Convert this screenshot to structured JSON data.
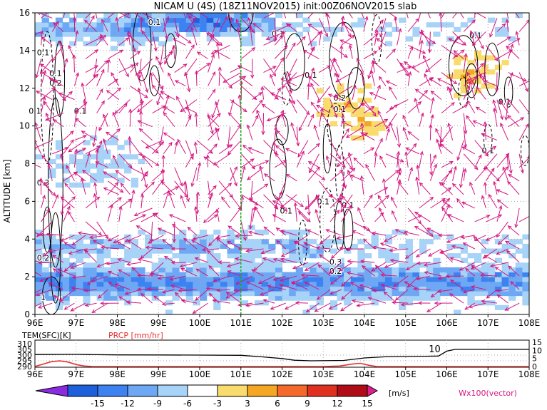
{
  "chart_data": [
    {
      "type": "heatmap",
      "title": "NICAM U (4S) (18Z11NOV2015) init:00Z06NOV2015 slab",
      "ylabel": "ALTITUDE [km]",
      "x_ticks": [
        "96E",
        "97E",
        "98E",
        "99E",
        "100E",
        "101E",
        "102E",
        "103E",
        "104E",
        "105E",
        "106E",
        "107E",
        "108E"
      ],
      "x_values": [
        96,
        97,
        98,
        99,
        100,
        101,
        102,
        103,
        104,
        105,
        106,
        107,
        108
      ],
      "y_ticks": [
        "0",
        "2",
        "4",
        "6",
        "8",
        "10",
        "12",
        "14",
        "16"
      ],
      "y_values": [
        0,
        2,
        4,
        6,
        8,
        10,
        12,
        14,
        16
      ],
      "xlim": [
        96,
        108
      ],
      "ylim": [
        0,
        16
      ],
      "marker_longitude": 101,
      "contour_labels": [
        {
          "text": "0.1",
          "lon": 98.9,
          "alt": 15.5
        },
        {
          "text": "0.1",
          "lon": 101.9,
          "alt": 14.9
        },
        {
          "text": "0.1",
          "lon": 106.7,
          "alt": 14.8
        },
        {
          "text": "0.1",
          "lon": 96.2,
          "alt": 13.9
        },
        {
          "text": "0.1",
          "lon": 102.7,
          "alt": 12.7
        },
        {
          "text": "0.1",
          "lon": 96.5,
          "alt": 12.8
        },
        {
          "text": "0.2",
          "lon": 96.5,
          "alt": 12.3
        },
        {
          "text": "0.2",
          "lon": 103.4,
          "alt": 11.5
        },
        {
          "text": "0.1",
          "lon": 103.4,
          "alt": 10.9
        },
        {
          "text": "0.1",
          "lon": 96.0,
          "alt": 10.8
        },
        {
          "text": "0.1",
          "lon": 97.1,
          "alt": 10.8
        },
        {
          "text": "0.1",
          "lon": 107.4,
          "alt": 11.3
        },
        {
          "text": "0.1",
          "lon": 107.0,
          "alt": 8.7
        },
        {
          "text": "0.3",
          "lon": 96.2,
          "alt": 7.0
        },
        {
          "text": "0.1",
          "lon": 102.1,
          "alt": 5.5
        },
        {
          "text": "0.1",
          "lon": 103.0,
          "alt": 6.0
        },
        {
          "text": "0.1",
          "lon": 103.6,
          "alt": 5.8
        },
        {
          "text": "0.2",
          "lon": 96.2,
          "alt": 3.0
        },
        {
          "text": "0.3",
          "lon": 103.3,
          "alt": 2.8
        },
        {
          "text": "0.2",
          "lon": 103.3,
          "alt": 2.3
        },
        {
          "text": "1",
          "lon": 96.2,
          "alt": 0.9
        }
      ],
      "colorbar": {
        "unit": "[m/s]",
        "labels": [
          "-15",
          "-12",
          "-9",
          "-6",
          "-3",
          "3",
          "6",
          "9",
          "12",
          "15"
        ],
        "colors": [
          "#8a2be2",
          "#1e5fdc",
          "#3c82f0",
          "#6ea8f5",
          "#a6d3f7",
          "#ffffff",
          "#f9dc6e",
          "#f5a623",
          "#f56a2a",
          "#e03020",
          "#b00c18",
          "#e0208a"
        ]
      },
      "vector_label": "Wx100(vector)",
      "colors": {
        "vector": "#d5157f",
        "marker_line": "#1ea81e",
        "grid": "#a9a9a9",
        "contour": "#000000"
      }
    },
    {
      "type": "line",
      "series": [
        {
          "name": "TEM(SFC)[K]",
          "color": "#000000"
        },
        {
          "name": "PRCP [mm/hr]",
          "color": "#e53030"
        }
      ],
      "legend_tem_label": "TEM(SFC)[K]",
      "legend_prcp_label": "PRCP [mm/hr]",
      "x_ticks": [
        "96E",
        "97E",
        "98E",
        "99E",
        "100E",
        "101E",
        "102E",
        "103E",
        "104E",
        "105E",
        "106E",
        "107E",
        "108E"
      ],
      "left_ticks": [
        "310",
        "305",
        "300",
        "295",
        "290"
      ],
      "left_values": [
        310,
        305,
        300,
        295,
        290
      ],
      "right_ticks": [
        "15",
        "10",
        "5",
        "0"
      ],
      "right_values": [
        15,
        10,
        5,
        0
      ],
      "annotation": "10",
      "tem": {
        "lon": [
          96,
          97,
          97.5,
          98,
          99,
          100,
          101,
          101.5,
          102,
          102.3,
          102.7,
          103.5,
          104,
          104.5,
          105,
          105.5,
          105.8,
          106,
          106.2,
          107,
          108
        ],
        "values": [
          300.5,
          300.6,
          300.4,
          300.2,
          300.1,
          300.0,
          299.8,
          298.5,
          297.0,
          295.5,
          295.0,
          295.3,
          297.5,
          298.5,
          298.8,
          299.0,
          299.2,
          303.5,
          305.0,
          305.0,
          305.0
        ]
      },
      "prcp": {
        "lon": [
          96,
          96.2,
          96.4,
          96.6,
          96.8,
          97.0,
          97.2,
          97.4,
          98,
          102,
          102.5,
          103,
          103.4,
          103.7,
          103.9,
          104.1,
          104.3,
          108
        ],
        "values": [
          0.0,
          1.5,
          3.0,
          3.5,
          2.8,
          1.2,
          0.3,
          0.0,
          0.0,
          0.0,
          0.0,
          0.0,
          0.3,
          1.5,
          2.0,
          0.8,
          0.0,
          0.0
        ]
      }
    }
  ]
}
